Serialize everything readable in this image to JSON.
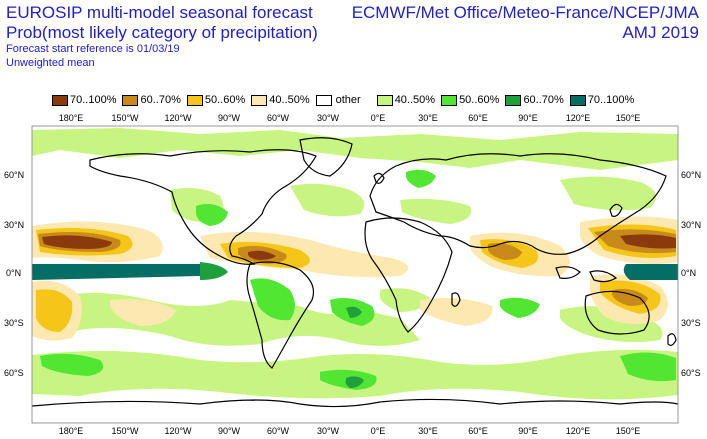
{
  "header": {
    "title_line1": "EUROSIP multi-model seasonal forecast",
    "title_line2": "Prob(most likely category of precipitation)",
    "title_line3": "Forecast start reference is 01/03/19",
    "title_line4": "Unweighted mean",
    "centres": "ECMWF/Met Office/Meteo-France/NCEP/JMA",
    "season": "AMJ 2019"
  },
  "legend": {
    "dry": [
      {
        "label": "70..100%",
        "color": "#8b3a0e"
      },
      {
        "label": "60..70%",
        "color": "#c88a1a"
      },
      {
        "label": "50..60%",
        "color": "#f5c518"
      },
      {
        "label": "40..50%",
        "color": "#fde8b0"
      }
    ],
    "other": "other",
    "wet": [
      {
        "label": "40..50%",
        "color": "#c8f582"
      },
      {
        "label": "50..60%",
        "color": "#50e632"
      },
      {
        "label": "60..70%",
        "color": "#1ea03c"
      },
      {
        "label": "70..100%",
        "color": "#046e64"
      }
    ]
  },
  "axes": {
    "lon_top": [
      "180°E",
      "150°W",
      "120°W",
      "90°W",
      "60°W",
      "30°W",
      "0°E",
      "30°E",
      "60°E",
      "90°E",
      "120°E",
      "150°E"
    ],
    "lon_bottom": [
      "180°E",
      "150°W",
      "120°W",
      "90°W",
      "60°W",
      "30°W",
      "0°E",
      "30°E",
      "60°E",
      "90°E",
      "120°E",
      "150°E"
    ],
    "lat_left": [
      "60°N",
      "30°N",
      "0°N",
      "30°S",
      "60°S"
    ],
    "lat_right": [
      "60°N",
      "30°N",
      "0°N",
      "30°S",
      "60°S"
    ]
  }
}
